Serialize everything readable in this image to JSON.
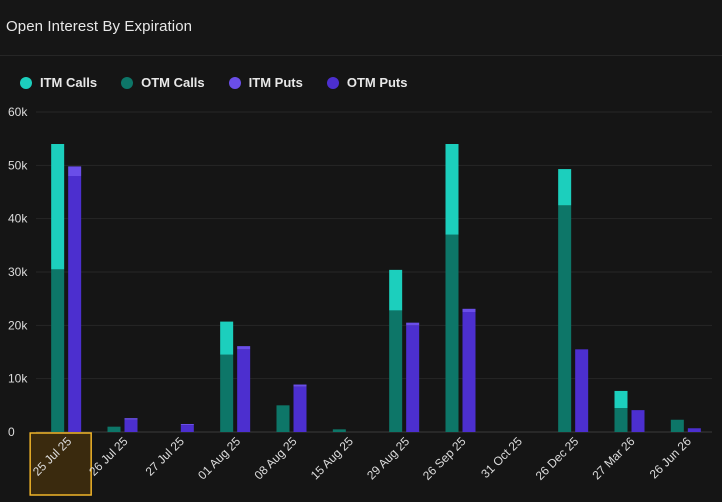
{
  "title": "Open Interest By Expiration",
  "legend": [
    {
      "label": "ITM Calls",
      "color": "#1ccfbd"
    },
    {
      "label": "OTM Calls",
      "color": "#0d7668"
    },
    {
      "label": "ITM Puts",
      "color": "#6a4ee8"
    },
    {
      "label": "OTM Puts",
      "color": "#4c2fcf"
    }
  ],
  "chart_data": {
    "type": "bar",
    "stacked": true,
    "categories": [
      "25 Jul 25",
      "26 Jul 25",
      "27 Jul 25",
      "01 Aug 25",
      "08 Aug 25",
      "15 Aug 25",
      "29 Aug 25",
      "26 Sep 25",
      "31 Oct 25",
      "26 Dec 25",
      "27 Mar 26",
      "26 Jun 26"
    ],
    "highlighted_category": "25 Jul 25",
    "ylim": [
      0,
      60000
    ],
    "yticks": [
      0,
      10000,
      20000,
      30000,
      40000,
      50000,
      60000
    ],
    "ytick_labels": [
      "0",
      "10k",
      "20k",
      "30k",
      "40k",
      "50k",
      "60k"
    ],
    "series": [
      {
        "name": "OTM Calls",
        "stack": "calls",
        "values": [
          30500,
          1000,
          0,
          14500,
          5000,
          500,
          22800,
          37000,
          0,
          42500,
          4500,
          2300
        ]
      },
      {
        "name": "ITM Calls",
        "stack": "calls",
        "values": [
          23500,
          0,
          0,
          6200,
          0,
          0,
          7600,
          17000,
          0,
          6800,
          3200,
          0
        ]
      },
      {
        "name": "OTM Puts",
        "stack": "puts",
        "values": [
          48000,
          2300,
          1300,
          15500,
          8500,
          0,
          20000,
          22500,
          0,
          15500,
          4100,
          700
        ]
      },
      {
        "name": "ITM Puts",
        "stack": "puts",
        "values": [
          1800,
          300,
          200,
          600,
          400,
          0,
          500,
          600,
          0,
          0,
          0,
          0
        ]
      }
    ],
    "grid": true
  }
}
